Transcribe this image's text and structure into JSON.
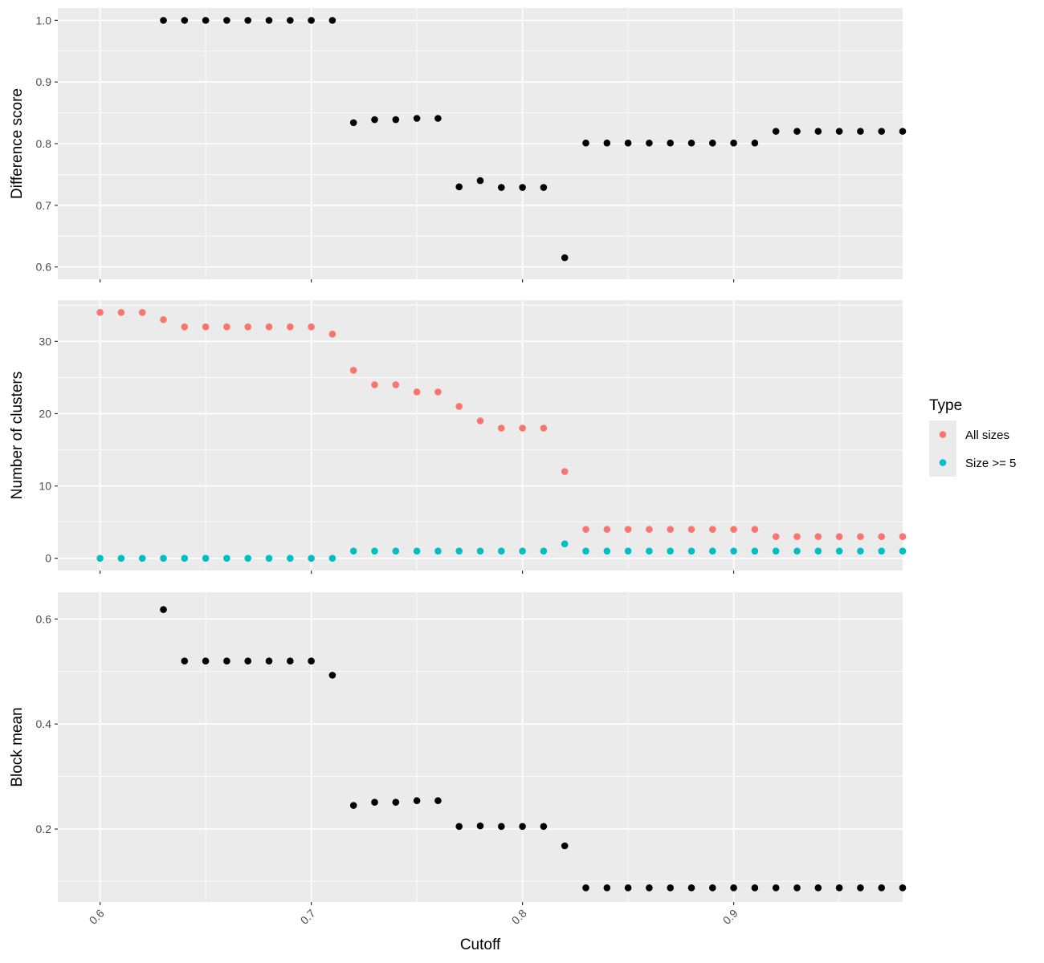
{
  "chart_data": {
    "type": "scatter",
    "xlabel": "Cutoff",
    "x_ticks": [
      "0.6",
      "0.7",
      "0.8",
      "0.9"
    ],
    "xlim": [
      0.58,
      0.98
    ],
    "x": [
      0.6,
      0.61,
      0.62,
      0.63,
      0.64,
      0.65,
      0.66,
      0.67,
      0.68,
      0.69,
      0.7,
      0.71,
      0.72,
      0.73,
      0.74,
      0.75,
      0.76,
      0.77,
      0.78,
      0.79,
      0.8,
      0.81,
      0.82,
      0.83,
      0.84,
      0.85,
      0.86,
      0.87,
      0.88,
      0.89,
      0.9,
      0.91,
      0.92,
      0.93,
      0.94,
      0.95,
      0.96,
      0.97,
      0.98
    ],
    "panels": [
      {
        "ylabel": "Difference score",
        "ylim": [
          0.58,
          1.02
        ],
        "y_ticks": [
          "0.6",
          "0.7",
          "0.8",
          "0.9",
          "1.0"
        ],
        "series": [
          {
            "color": "#000000",
            "values": [
              null,
              null,
              null,
              1.0,
              1.0,
              1.0,
              1.0,
              1.0,
              1.0,
              1.0,
              1.0,
              1.0,
              0.834,
              0.839,
              0.839,
              0.841,
              0.841,
              0.73,
              0.74,
              0.729,
              0.729,
              0.729,
              0.615,
              0.801,
              0.801,
              0.801,
              0.801,
              0.801,
              0.801,
              0.801,
              0.801,
              0.801,
              0.82,
              0.82,
              0.82,
              0.82,
              0.82,
              0.82,
              0.82
            ]
          }
        ]
      },
      {
        "ylabel": "Number of clusters",
        "ylim": [
          -1.7,
          35.7
        ],
        "y_ticks": [
          "0",
          "10",
          "20",
          "30"
        ],
        "series": [
          {
            "name": "All sizes",
            "color": "#F8766D",
            "values": [
              34,
              34,
              34,
              33,
              32,
              32,
              32,
              32,
              32,
              32,
              32,
              31,
              26,
              24,
              24,
              23,
              23,
              21,
              19,
              18,
              18,
              18,
              12,
              4,
              4,
              4,
              4,
              4,
              4,
              4,
              4,
              4,
              3,
              3,
              3,
              3,
              3,
              3,
              3
            ]
          },
          {
            "name": "Size >= 5",
            "color": "#00BFC4",
            "values": [
              0,
              0,
              0,
              0,
              0,
              0,
              0,
              0,
              0,
              0,
              0,
              0,
              1,
              1,
              1,
              1,
              1,
              1,
              1,
              1,
              1,
              1,
              2,
              1,
              1,
              1,
              1,
              1,
              1,
              1,
              1,
              1,
              1,
              1,
              1,
              1,
              1,
              1,
              1
            ]
          }
        ]
      },
      {
        "ylabel": "Block mean",
        "ylim": [
          0.061,
          0.651
        ],
        "y_ticks": [
          "0.2",
          "0.4",
          "0.6"
        ],
        "series": [
          {
            "color": "#000000",
            "values": [
              null,
              null,
              null,
              0.618,
              0.52,
              0.52,
              0.52,
              0.52,
              0.52,
              0.52,
              0.52,
              0.493,
              0.245,
              0.251,
              0.251,
              0.254,
              0.254,
              0.205,
              0.206,
              0.205,
              0.205,
              0.205,
              0.168,
              0.088,
              0.088,
              0.088,
              0.088,
              0.088,
              0.088,
              0.088,
              0.088,
              0.088,
              0.088,
              0.088,
              0.088,
              0.088,
              0.088,
              0.088,
              0.088
            ]
          }
        ]
      }
    ],
    "legend": {
      "title": "Type",
      "position": "right",
      "entries": [
        {
          "label": "All sizes",
          "color": "#F8766D"
        },
        {
          "label": "Size >= 5",
          "color": "#00BFC4"
        }
      ]
    },
    "grid": true
  }
}
